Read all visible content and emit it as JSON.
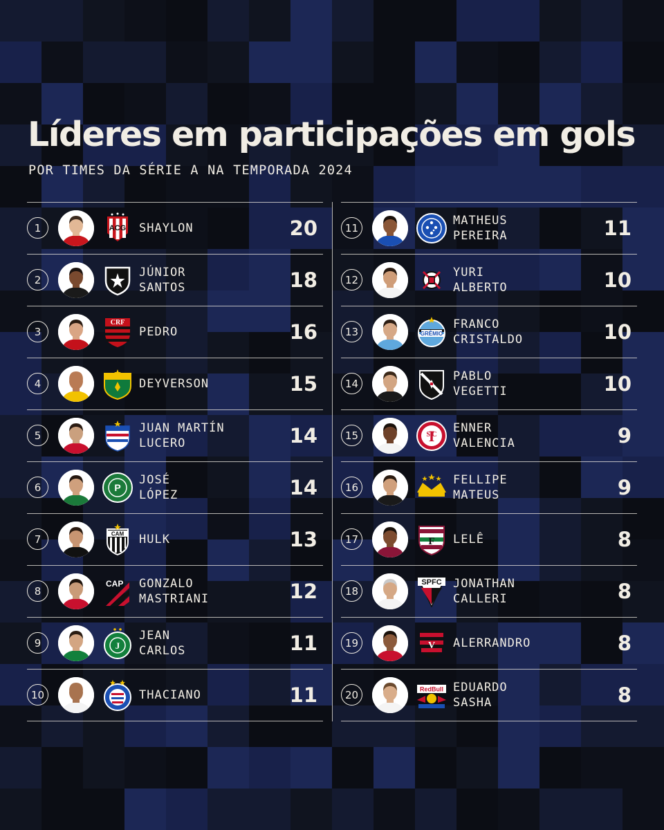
{
  "header": {
    "title": "Líderes em participações em gols",
    "subtitle": "POR TIMES DA SÉRIE A NA TEMPORADA 2024"
  },
  "colors": {
    "background": "#10141f",
    "accent_blue": "#1c2850",
    "text": "#f1ede4"
  },
  "players": [
    {
      "rank": "1",
      "line1": "SHAYLON",
      "line2": "",
      "total": "20",
      "crest": "athletico-go-crest",
      "skin": "#e2b896",
      "hair": "#3b2a1e",
      "shirt": "#c8161d"
    },
    {
      "rank": "2",
      "line1": "JÚNIOR",
      "line2": "SANTOS",
      "total": "18",
      "crest": "botafogo-crest",
      "skin": "#7a4a2f",
      "hair": "#1d1410",
      "shirt": "#1a1a1a"
    },
    {
      "rank": "3",
      "line1": "PEDRO",
      "line2": "",
      "total": "16",
      "crest": "flamengo-crest",
      "skin": "#d9a584",
      "hair": "#2b1c12",
      "shirt": "#c4111b"
    },
    {
      "rank": "4",
      "line1": "DEYVERSON",
      "line2": "",
      "total": "15",
      "crest": "cuiaba-crest",
      "skin": "#b97b55",
      "hair": "#b97b55",
      "shirt": "#f2c200"
    },
    {
      "rank": "5",
      "line1": "JUAN MARTÍN",
      "line2": "LUCERO",
      "total": "14",
      "crest": "fortaleza-crest",
      "skin": "#caa07e",
      "hair": "#2a1b12",
      "shirt": "#c8102e"
    },
    {
      "rank": "6",
      "line1": "JOSÉ",
      "line2": "LÓPEZ",
      "total": "14",
      "crest": "palmeiras-crest",
      "skin": "#cfa07d",
      "hair": "#24170f",
      "shirt": "#1b7a3a"
    },
    {
      "rank": "7",
      "line1": "HULK",
      "line2": "",
      "total": "13",
      "crest": "atletico-mg-crest",
      "skin": "#c89572",
      "hair": "#2a1a10",
      "shirt": "#111111"
    },
    {
      "rank": "8",
      "line1": "GONZALO",
      "line2": "MASTRIANI",
      "total": "12",
      "crest": "athletico-pr-crest",
      "skin": "#c99b78",
      "hair": "#1f140d",
      "shirt": "#c8102e"
    },
    {
      "rank": "9",
      "line1": "JEAN",
      "line2": "CARLOS",
      "total": "11",
      "crest": "juventude-crest",
      "skin": "#d3a582",
      "hair": "#2b1d13",
      "shirt": "#12803c"
    },
    {
      "rank": "10",
      "line1": "THACIANO",
      "line2": "",
      "total": "11",
      "crest": "bahia-crest",
      "skin": "#a8734f",
      "hair": "#a8734f",
      "shirt": "#f4f4f4"
    },
    {
      "rank": "11",
      "line1": "MATHEUS",
      "line2": "PEREIRA",
      "total": "11",
      "crest": "cruzeiro-crest",
      "skin": "#8a5636",
      "hair": "#1a110b",
      "shirt": "#1a4fb3"
    },
    {
      "rank": "12",
      "line1": "YURI",
      "line2": "ALBERTO",
      "total": "10",
      "crest": "corinthians-crest",
      "skin": "#cf9d78",
      "hair": "#2a1b11",
      "shirt": "#f4f4f4"
    },
    {
      "rank": "13",
      "line1": "FRANCO",
      "line2": "CRISTALDO",
      "total": "10",
      "crest": "gremio-crest",
      "skin": "#d6a886",
      "hair": "#2b1c12",
      "shirt": "#5fa8dd"
    },
    {
      "rank": "14",
      "line1": "PABLO",
      "line2": "VEGETTI",
      "total": "10",
      "crest": "vasco-crest",
      "skin": "#d2a582",
      "hair": "#3a2818",
      "shirt": "#1a1a1a"
    },
    {
      "rank": "15",
      "line1": "ENNER",
      "line2": "VALENCIA",
      "total": "9",
      "crest": "internacional-crest",
      "skin": "#6e4129",
      "hair": "#1a110b",
      "shirt": "#f4f4f4"
    },
    {
      "rank": "16",
      "line1": "FELLIPE",
      "line2": "MATEUS",
      "total": "9",
      "crest": "criciuma-crest",
      "skin": "#d0a07c",
      "hair": "#2a1b11",
      "shirt": "#1a1a1a"
    },
    {
      "rank": "17",
      "line1": "LELÊ",
      "line2": "",
      "total": "8",
      "crest": "fluminense-crest",
      "skin": "#7d4b2f",
      "hair": "#1a110b",
      "shirt": "#8a1538"
    },
    {
      "rank": "18",
      "line1": "JONATHAN",
      "line2": "CALLERI",
      "total": "8",
      "crest": "sao-paulo-crest",
      "skin": "#d5a885",
      "hair": "#c9c9c9",
      "shirt": "#f4f4f4"
    },
    {
      "rank": "19",
      "line1": "ALERRANDRO",
      "line2": "",
      "total": "8",
      "crest": "vitoria-crest",
      "skin": "#8b5a3b",
      "hair": "#1a110b",
      "shirt": "#c8102e"
    },
    {
      "rank": "20",
      "line1": "EDUARDO",
      "line2": "SASHA",
      "total": "8",
      "crest": "bragantino-crest",
      "skin": "#d9ad8a",
      "hair": "#6b4a2e",
      "shirt": "#f4f4f4"
    }
  ]
}
